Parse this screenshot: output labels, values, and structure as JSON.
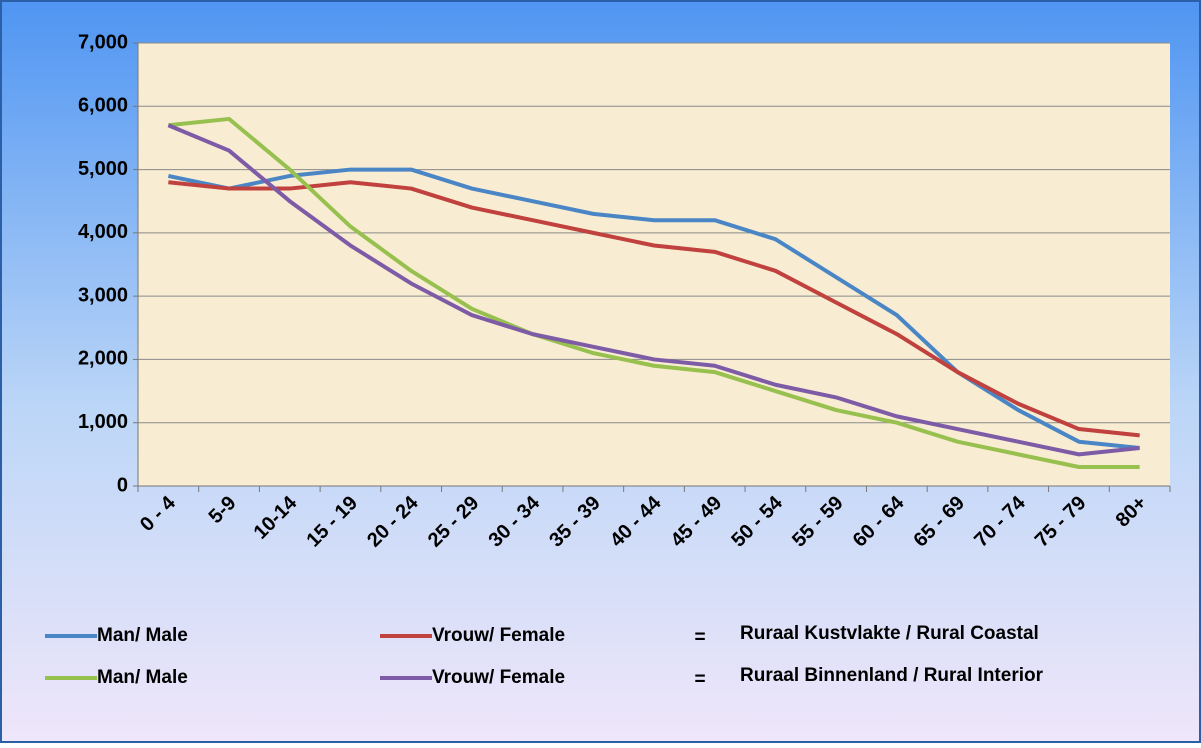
{
  "chart_data": {
    "type": "line",
    "categories": [
      "0 - 4",
      "5-9",
      "10-14",
      "15 - 19",
      "20 - 24",
      "25 - 29",
      "30 - 34",
      "35 - 39",
      "40 - 44",
      "45 - 49",
      "50 - 54",
      "55 - 59",
      "60 - 64",
      "65 - 69",
      "70 - 74",
      "75 - 79",
      "80+"
    ],
    "series": [
      {
        "name": "Man/ Male",
        "color": "#4a86c5",
        "values": [
          4900,
          4700,
          4900,
          5000,
          5000,
          4700,
          4500,
          4300,
          4200,
          4200,
          3900,
          3300,
          2700,
          1800,
          1200,
          700,
          600
        ]
      },
      {
        "name": "Vrouw/ Female",
        "color": "#c0413d",
        "values": [
          4800,
          4700,
          4700,
          4800,
          4700,
          4400,
          4200,
          4000,
          3800,
          3700,
          3400,
          2900,
          2400,
          1800,
          1300,
          900,
          800
        ]
      },
      {
        "name": "Man/ Male",
        "color": "#97c04f",
        "values": [
          5700,
          5800,
          5000,
          4100,
          3400,
          2800,
          2400,
          2100,
          1900,
          1800,
          1500,
          1200,
          1000,
          700,
          500,
          300,
          300
        ]
      },
      {
        "name": "Vrouw/ Female",
        "color": "#7e5ba6",
        "values": [
          5700,
          5300,
          4500,
          3800,
          3200,
          2700,
          2400,
          2200,
          2000,
          1900,
          1600,
          1400,
          1100,
          900,
          700,
          500,
          600
        ]
      }
    ],
    "annotations": [
      {
        "symbol": "=",
        "text": "Ruraal Kustvlakte / Rural Coastal"
      },
      {
        "symbol": "=",
        "text": "Ruraal Binnenland / Rural Interior"
      }
    ],
    "ylim": [
      0,
      7000
    ],
    "yticks": [
      0,
      {
        "value": 1000,
        "label": "1,000"
      },
      {
        "value": 2000,
        "label": "2,000"
      },
      {
        "value": 3000,
        "label": "3,000"
      },
      {
        "value": 4000,
        "label": "4,000"
      },
      {
        "value": 5000,
        "label": "5,000"
      },
      {
        "value": 6000,
        "label": "6,000"
      },
      {
        "value": 7000,
        "label": "7,000"
      }
    ],
    "grid": true
  }
}
